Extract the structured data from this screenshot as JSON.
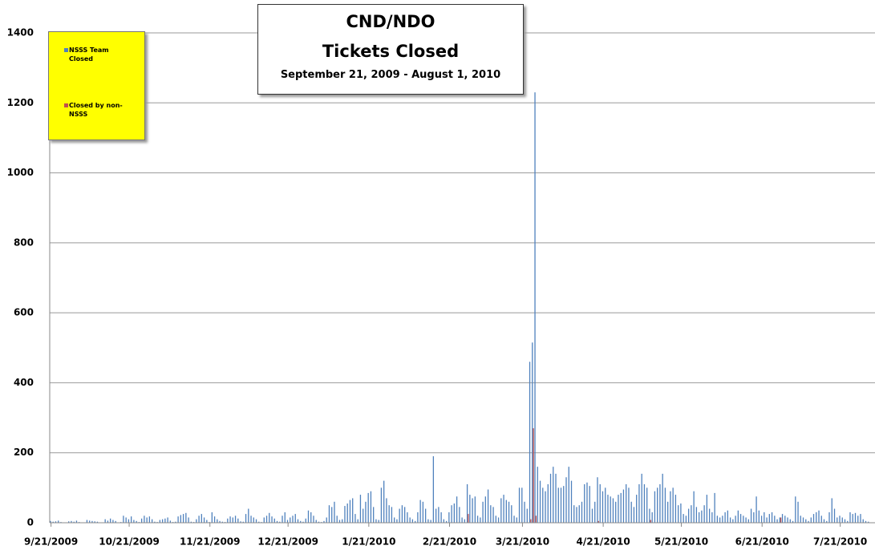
{
  "chart_data": {
    "type": "bar",
    "title": "CND/NDO\nTickets Closed",
    "subtitle": "September 21, 2009 - August 1, 2010",
    "categories": [
      "9/21/2009",
      null,
      null,
      null,
      null,
      null,
      null,
      null,
      null,
      null,
      null,
      null,
      null,
      null,
      null,
      null,
      null,
      null,
      null,
      null,
      null,
      null,
      null,
      null,
      null,
      null,
      null,
      null,
      null,
      null,
      "10/21/2009",
      null,
      null,
      null,
      null,
      null,
      null,
      null,
      null,
      null,
      null,
      null,
      null,
      null,
      null,
      null,
      null,
      null,
      null,
      null,
      null,
      null,
      null,
      null,
      null,
      null,
      null,
      null,
      null,
      null,
      null,
      "11/21/2009",
      null,
      null,
      null,
      null,
      null,
      null,
      null,
      null,
      null,
      null,
      null,
      null,
      null,
      null,
      null,
      null,
      null,
      null,
      null,
      null,
      null,
      null,
      null,
      null,
      null,
      null,
      null,
      null,
      null,
      "12/21/2009",
      null,
      null,
      null,
      null,
      null,
      null,
      null,
      null,
      null,
      null,
      null,
      null,
      null,
      null,
      null,
      null,
      null,
      null,
      null,
      null,
      null,
      null,
      null,
      null,
      null,
      null,
      null,
      null,
      null,
      null,
      "1/21/2010",
      null,
      null,
      null,
      null,
      null,
      null,
      null,
      null,
      null,
      null,
      null,
      null,
      null,
      null,
      null,
      null,
      null,
      null,
      null,
      null,
      null,
      null,
      null,
      null,
      null,
      null,
      null,
      null,
      null,
      null,
      "2/21/2010",
      null,
      null,
      null,
      null,
      null,
      null,
      null,
      null,
      null,
      null,
      null,
      null,
      null,
      null,
      null,
      null,
      null,
      null,
      null,
      null,
      null,
      null,
      null,
      null,
      null,
      null,
      null,
      "3/21/2010",
      null,
      null,
      null,
      null,
      null,
      null,
      null,
      null,
      null,
      null,
      null,
      null,
      null,
      null,
      null,
      null,
      null,
      null,
      null,
      null,
      null,
      null,
      null,
      null,
      null,
      null,
      null,
      null,
      null,
      null,
      "4/21/2010",
      null,
      null,
      null,
      null,
      null,
      null,
      null,
      null,
      null,
      null,
      null,
      null,
      null,
      null,
      null,
      null,
      null,
      null,
      null,
      null,
      null,
      null,
      null,
      null,
      null,
      null,
      null,
      null,
      null,
      "5/21/2010",
      null,
      null,
      null,
      null,
      null,
      null,
      null,
      null,
      null,
      null,
      null,
      null,
      null,
      null,
      null,
      null,
      null,
      null,
      null,
      null,
      null,
      null,
      null,
      null,
      null,
      null,
      null,
      null,
      null,
      null,
      "6/21/2010",
      null,
      null,
      null,
      null,
      null,
      null,
      null,
      null,
      null,
      null,
      null,
      null,
      null,
      null,
      null,
      null,
      null,
      null,
      null,
      null,
      null,
      null,
      null,
      null,
      null,
      null,
      null,
      null,
      null,
      "7/21/2010",
      null,
      null,
      null,
      null,
      null,
      null,
      null,
      null,
      null,
      null,
      null
    ],
    "series": [
      {
        "name": "NSSS Team Closed",
        "color": "#4f81bd",
        "values": [
          5,
          3,
          4,
          6,
          2,
          1,
          1,
          4,
          5,
          3,
          6,
          2,
          1,
          1,
          8,
          6,
          5,
          4,
          3,
          1,
          1,
          10,
          6,
          12,
          8,
          5,
          1,
          2,
          20,
          15,
          10,
          18,
          8,
          5,
          2,
          12,
          20,
          15,
          18,
          10,
          3,
          2,
          8,
          10,
          12,
          15,
          6,
          2,
          3,
          18,
          22,
          25,
          28,
          15,
          3,
          2,
          10,
          20,
          25,
          15,
          8,
          2,
          30,
          18,
          10,
          5,
          3,
          2,
          12,
          18,
          15,
          20,
          12,
          4,
          3,
          25,
          40,
          20,
          15,
          10,
          3,
          2,
          15,
          20,
          28,
          18,
          12,
          5,
          3,
          20,
          30,
          8,
          15,
          20,
          25,
          10,
          5,
          3,
          12,
          35,
          30,
          20,
          8,
          3,
          2,
          5,
          15,
          50,
          45,
          60,
          20,
          8,
          10,
          48,
          55,
          65,
          70,
          25,
          10,
          80,
          40,
          60,
          85,
          90,
          45,
          10,
          8,
          100,
          120,
          70,
          50,
          45,
          15,
          10,
          40,
          50,
          45,
          30,
          15,
          10,
          5,
          30,
          65,
          60,
          40,
          10,
          8,
          190,
          40,
          45,
          30,
          10,
          5,
          30,
          50,
          55,
          75,
          45,
          15,
          10,
          110,
          80,
          70,
          75,
          20,
          15,
          60,
          75,
          95,
          50,
          45,
          20,
          15,
          70,
          80,
          65,
          60,
          50,
          20,
          15,
          100,
          100,
          60,
          40,
          460,
          515,
          1230,
          160,
          120,
          100,
          90,
          110,
          140,
          160,
          140,
          100,
          100,
          105,
          130,
          160,
          120,
          50,
          45,
          50,
          60,
          110,
          115,
          105,
          40,
          60,
          130,
          110,
          90,
          100,
          80,
          75,
          70,
          60,
          80,
          85,
          95,
          110,
          100,
          60,
          45,
          80,
          110,
          140,
          110,
          100,
          40,
          30,
          90,
          100,
          110,
          140,
          100,
          60,
          90,
          100,
          80,
          50,
          55,
          25,
          20,
          40,
          50,
          90,
          45,
          30,
          35,
          50,
          80,
          40,
          30,
          85,
          20,
          15,
          20,
          30,
          35,
          15,
          10,
          20,
          35,
          25,
          20,
          15,
          10,
          40,
          30,
          75,
          35,
          20,
          30,
          15,
          25,
          30,
          20,
          10,
          15,
          25,
          20,
          15,
          10,
          5,
          75,
          60,
          20,
          15,
          10,
          5,
          15,
          25,
          30,
          35,
          20,
          10,
          5,
          30,
          70,
          40,
          15,
          20,
          15,
          10,
          5,
          30,
          25,
          28,
          20,
          25,
          10,
          5,
          3
        ]
      },
      {
        "name": "Closed by non-NSSS",
        "color": "#c0504d",
        "values": [
          0,
          0,
          0,
          0,
          0,
          0,
          0,
          0,
          0,
          0,
          0,
          0,
          0,
          0,
          0,
          0,
          0,
          0,
          0,
          0,
          0,
          0,
          0,
          0,
          0,
          0,
          0,
          0,
          0,
          0,
          0,
          0,
          0,
          0,
          0,
          0,
          0,
          0,
          0,
          0,
          0,
          0,
          0,
          0,
          0,
          0,
          0,
          0,
          0,
          0,
          0,
          0,
          0,
          0,
          0,
          0,
          0,
          0,
          0,
          0,
          0,
          0,
          0,
          0,
          0,
          0,
          0,
          0,
          0,
          0,
          0,
          0,
          0,
          0,
          0,
          0,
          0,
          0,
          0,
          0,
          0,
          0,
          0,
          0,
          0,
          0,
          0,
          0,
          0,
          0,
          0,
          0,
          0,
          0,
          0,
          0,
          0,
          0,
          0,
          0,
          0,
          0,
          0,
          0,
          0,
          0,
          0,
          0,
          0,
          0,
          0,
          0,
          0,
          0,
          0,
          0,
          0,
          0,
          0,
          0,
          0,
          0,
          0,
          0,
          0,
          0,
          0,
          0,
          0,
          0,
          0,
          0,
          0,
          0,
          0,
          0,
          0,
          0,
          0,
          0,
          0,
          0,
          0,
          0,
          0,
          0,
          0,
          0,
          0,
          0,
          0,
          0,
          0,
          0,
          0,
          0,
          0,
          0,
          0,
          0,
          25,
          0,
          0,
          0,
          0,
          0,
          0,
          0,
          0,
          0,
          0,
          0,
          0,
          0,
          0,
          0,
          0,
          0,
          0,
          0,
          0,
          0,
          0,
          0,
          10,
          270,
          20,
          0,
          0,
          0,
          0,
          0,
          0,
          0,
          0,
          0,
          0,
          0,
          0,
          0,
          0,
          0,
          0,
          0,
          0,
          0,
          0,
          0,
          0,
          0,
          5,
          0,
          0,
          0,
          0,
          0,
          0,
          0,
          0,
          0,
          0,
          0,
          0,
          0,
          0,
          0,
          0,
          0,
          0,
          0,
          8,
          0,
          0,
          0,
          0,
          0,
          0,
          0,
          0,
          0,
          0,
          0,
          0,
          0,
          0,
          0,
          0,
          0,
          0,
          0,
          0,
          0,
          0,
          0,
          0,
          0,
          0,
          0,
          0,
          0,
          0,
          0,
          0,
          0,
          0,
          0,
          0,
          0,
          0,
          0,
          0,
          0,
          0,
          0,
          0,
          0,
          0,
          0,
          0,
          0,
          15,
          0,
          0,
          0,
          0,
          0,
          0,
          0,
          0,
          0,
          0,
          0,
          0,
          0,
          0,
          0,
          0,
          0,
          0,
          0,
          0,
          0,
          0,
          0,
          0,
          0,
          0,
          0,
          0,
          0,
          0,
          0,
          0,
          0,
          0
        ]
      }
    ],
    "ylim": [
      0,
      1400
    ],
    "yticks": [
      0,
      200,
      400,
      600,
      800,
      1000,
      1200,
      1400
    ],
    "grid": true
  }
}
